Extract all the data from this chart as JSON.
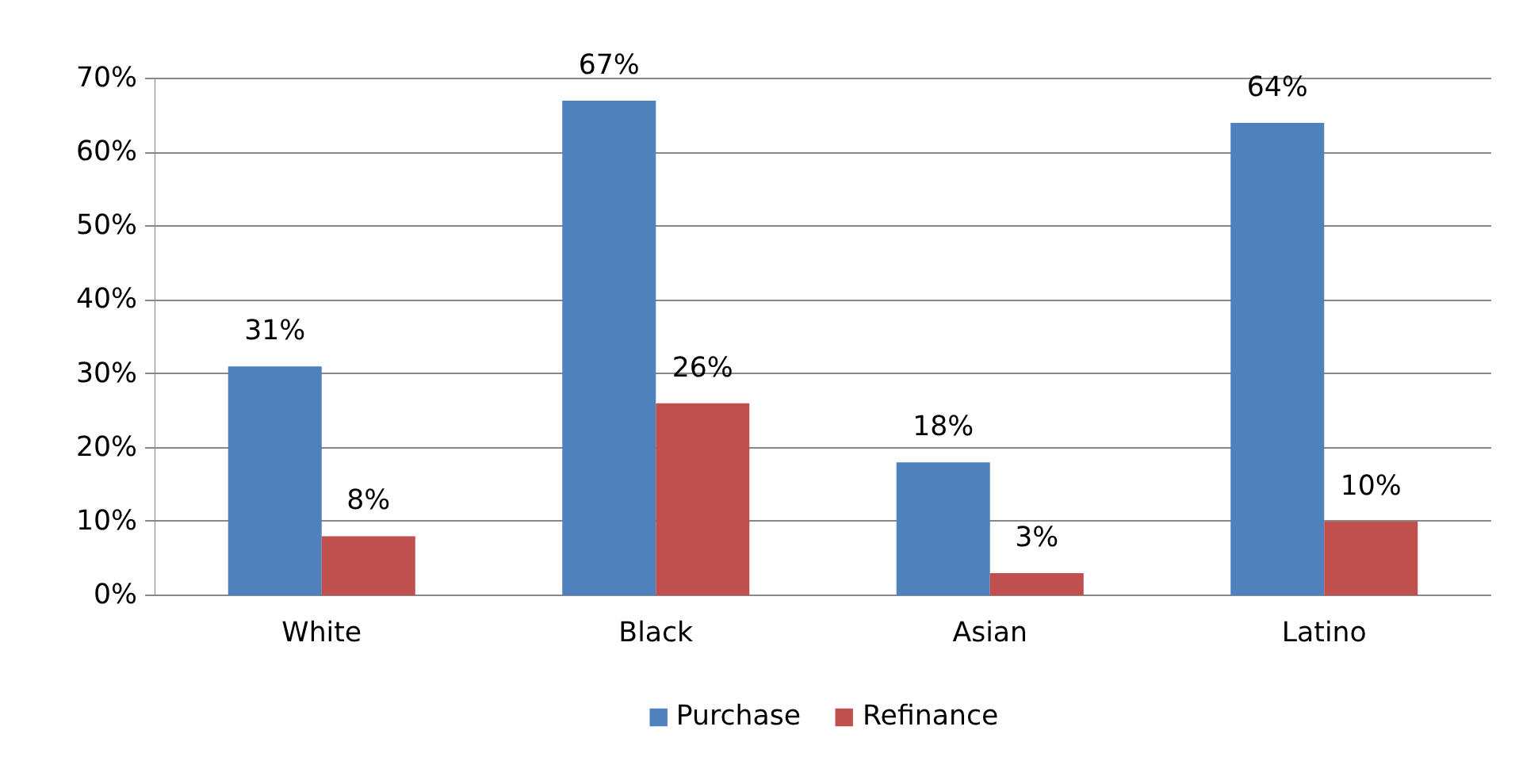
{
  "chart_data": {
    "type": "bar",
    "categories": [
      "White",
      "Black",
      "Asian",
      "Latino"
    ],
    "series": [
      {
        "name": "Purchase",
        "color": "#4f81bd",
        "values": [
          31,
          67,
          18,
          64
        ],
        "value_labels": [
          "31%",
          "67%",
          "18%",
          "64%"
        ]
      },
      {
        "name": "Refinance",
        "color": "#c0504d",
        "values": [
          8,
          26,
          3,
          10
        ],
        "value_labels": [
          "8%",
          "26%",
          "3%",
          "10%"
        ]
      }
    ],
    "ylim": [
      0,
      70
    ],
    "yticks": [
      {
        "value": 0,
        "label": "0%"
      },
      {
        "value": 10,
        "label": "10%"
      },
      {
        "value": 20,
        "label": "20%"
      },
      {
        "value": 30,
        "label": "30%"
      },
      {
        "value": 40,
        "label": "40%"
      },
      {
        "value": 50,
        "label": "50%"
      },
      {
        "value": 60,
        "label": "60%"
      },
      {
        "value": 70,
        "label": "70%"
      }
    ],
    "grid": "y",
    "legend": "bottom"
  }
}
